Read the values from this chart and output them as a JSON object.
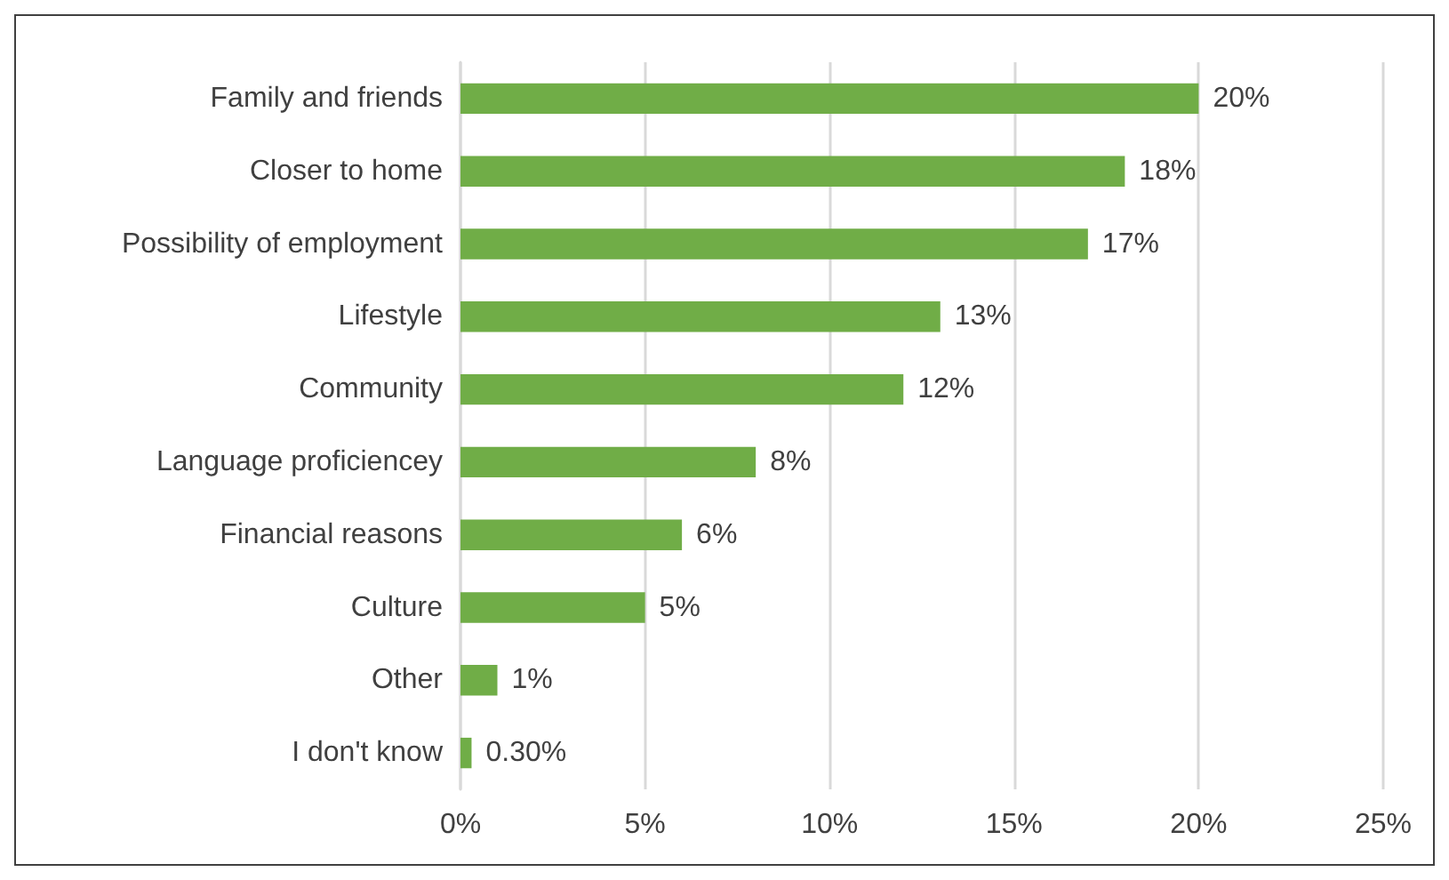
{
  "chart_data": {
    "type": "bar",
    "orientation": "horizontal",
    "categories": [
      "Family and friends",
      "Closer to home",
      "Possibility of employment",
      "Lifestyle",
      "Community",
      "Language proficiencey",
      "Financial reasons",
      "Culture",
      "Other",
      "I don't know"
    ],
    "series": [
      {
        "color": "#70ad47",
        "values": [
          20,
          18,
          17,
          13,
          12,
          8,
          6,
          5,
          1,
          0.3
        ],
        "value_labels": [
          "20%",
          "18%",
          "17%",
          "13%",
          "12%",
          "8%",
          "6%",
          "5%",
          "1%",
          "0.30%"
        ]
      }
    ],
    "xlim": [
      0,
      25
    ],
    "xticks": [
      {
        "value": 0,
        "label": "0%"
      },
      {
        "value": 5,
        "label": "5%"
      },
      {
        "value": 10,
        "label": "10%"
      },
      {
        "value": 15,
        "label": "15%"
      },
      {
        "value": 20,
        "label": "20%"
      },
      {
        "value": 25,
        "label": "25%"
      }
    ],
    "grid": "x"
  }
}
